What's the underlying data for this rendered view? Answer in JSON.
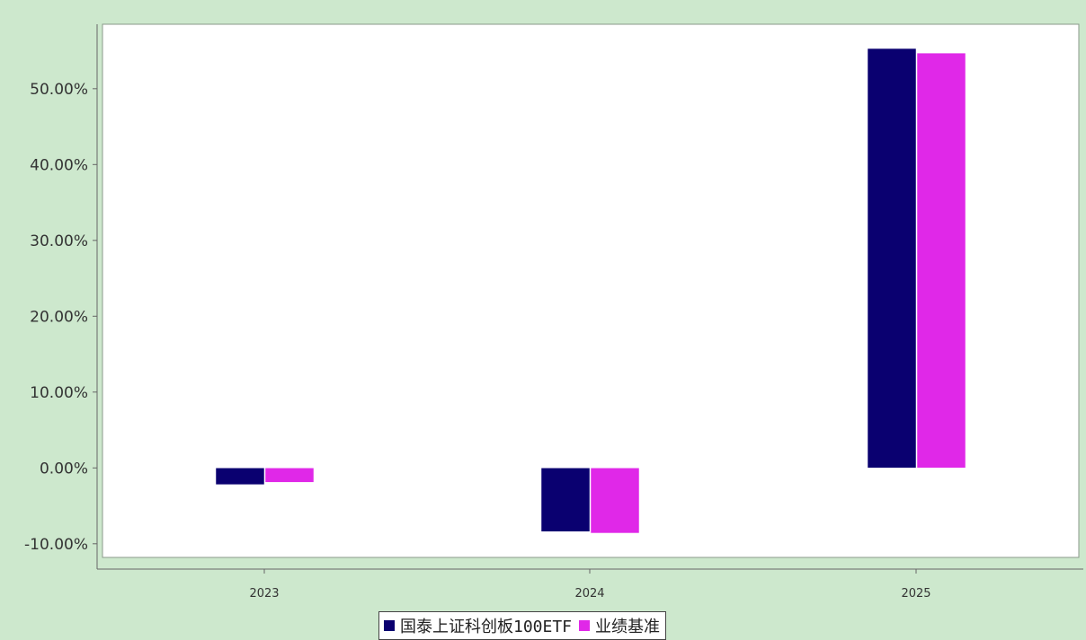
{
  "chart_data": {
    "type": "bar",
    "title": "",
    "xlabel": "",
    "ylabel": "",
    "categories": [
      "2023",
      "2024",
      "2025"
    ],
    "series": [
      {
        "name": "国泰上证科创板100ETF",
        "values": [
          -2.2,
          -8.4,
          55.3
        ],
        "color": "#0a0070"
      },
      {
        "name": "业绩基准",
        "values": [
          -1.9,
          -8.6,
          54.7
        ],
        "color": "#e028e8"
      }
    ],
    "yticks": [
      -10,
      0,
      10,
      20,
      30,
      40,
      50
    ],
    "ytick_labels": [
      "-10.00%",
      "0.00%",
      "10.00%",
      "20.00%",
      "30.00%",
      "40.00%",
      "50.00%"
    ],
    "ylim": [
      -11.8,
      58.5
    ],
    "grid": false,
    "legend_position": "bottom-center",
    "colors": {
      "page_background": "#cde8cd",
      "plot_background": "#ffffff",
      "axis": "#666666"
    }
  }
}
